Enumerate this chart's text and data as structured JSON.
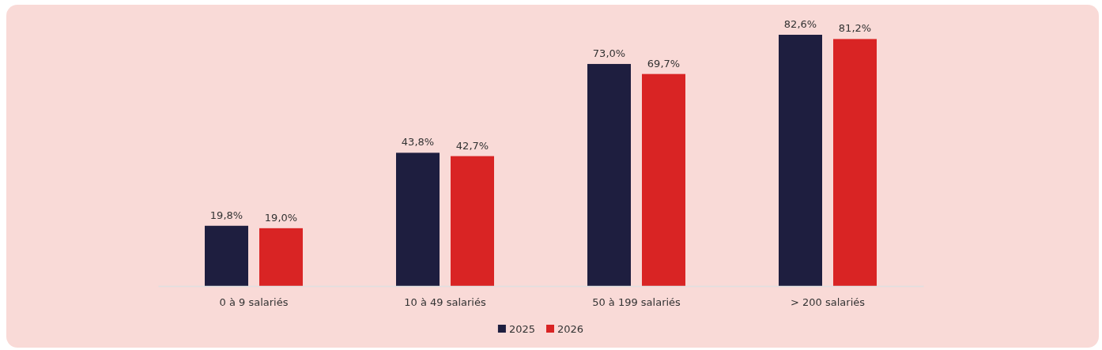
{
  "chart_data": {
    "type": "bar",
    "categories": [
      "0 à 9 salariés",
      "10 à 49 salariés",
      "50 à 199 salariés",
      "> 200 salariés"
    ],
    "series": [
      {
        "name": "2025",
        "color": "#1e1e3f",
        "values": [
          19.8,
          43.8,
          73.0,
          82.6
        ],
        "value_labels": [
          "19,8%",
          "43,8%",
          "73,0%",
          "82,6%"
        ]
      },
      {
        "name": "2026",
        "color": "#d92424",
        "values": [
          19.0,
          42.7,
          69.7,
          81.2
        ],
        "value_labels": [
          "19,0%",
          "42,7%",
          "69,7%",
          "81,2%"
        ]
      }
    ],
    "legend": "bottom",
    "grid": false,
    "tick_labels": "x"
  }
}
